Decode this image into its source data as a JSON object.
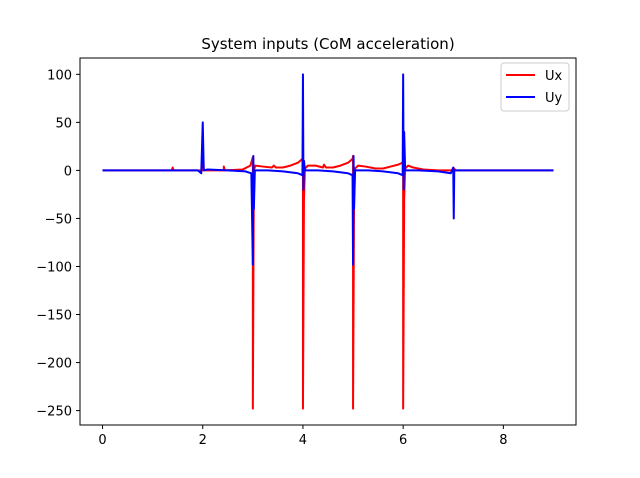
{
  "chart_data": {
    "type": "line",
    "title": "System inputs (CoM acceleration)",
    "xlabel": "",
    "ylabel": "",
    "xlim": [
      -0.45,
      9.45
    ],
    "ylim": [
      -265,
      117
    ],
    "xticks": [
      0,
      2,
      4,
      6,
      8
    ],
    "yticks": [
      100,
      50,
      0,
      -50,
      -100,
      -150,
      -200,
      -250
    ],
    "grid": false,
    "legend_position": "top-right",
    "series": [
      {
        "name": "Ux",
        "color": "#ff0000",
        "points": [
          [
            0,
            0
          ],
          [
            1.38,
            0
          ],
          [
            1.4,
            3
          ],
          [
            1.42,
            0
          ],
          [
            1.9,
            0
          ],
          [
            2.0,
            0
          ],
          [
            2.0,
            20
          ],
          [
            2.02,
            0
          ],
          [
            2.3,
            0
          ],
          [
            2.42,
            0
          ],
          [
            2.42,
            4
          ],
          [
            2.44,
            0
          ],
          [
            2.8,
            1
          ],
          [
            2.95,
            5
          ],
          [
            2.99,
            12
          ],
          [
            3.0,
            14
          ],
          [
            3.0,
            -248
          ],
          [
            3.02,
            0
          ],
          [
            3.05,
            5
          ],
          [
            3.2,
            4
          ],
          [
            3.38,
            3
          ],
          [
            3.42,
            5
          ],
          [
            3.46,
            3
          ],
          [
            3.6,
            3
          ],
          [
            3.75,
            5
          ],
          [
            3.9,
            8
          ],
          [
            3.99,
            12
          ],
          [
            4.0,
            14
          ],
          [
            4.0,
            -248
          ],
          [
            4.02,
            -30
          ],
          [
            4.04,
            2
          ],
          [
            4.1,
            5
          ],
          [
            4.25,
            5
          ],
          [
            4.4,
            3
          ],
          [
            4.42,
            6
          ],
          [
            4.46,
            3
          ],
          [
            4.6,
            3
          ],
          [
            4.75,
            5
          ],
          [
            4.9,
            8
          ],
          [
            4.99,
            12
          ],
          [
            5.0,
            15
          ],
          [
            5.0,
            -248
          ],
          [
            5.02,
            -30
          ],
          [
            5.04,
            2
          ],
          [
            5.1,
            5
          ],
          [
            5.25,
            4
          ],
          [
            5.45,
            2
          ],
          [
            5.6,
            2
          ],
          [
            5.75,
            4
          ],
          [
            5.9,
            6
          ],
          [
            5.99,
            8
          ],
          [
            6.0,
            10
          ],
          [
            6.0,
            -248
          ],
          [
            6.02,
            -30
          ],
          [
            6.04,
            2
          ],
          [
            6.1,
            5
          ],
          [
            6.2,
            3
          ],
          [
            6.4,
            1
          ],
          [
            6.7,
            0
          ],
          [
            7.0,
            0
          ],
          [
            7.02,
            2
          ],
          [
            7.04,
            0
          ],
          [
            9.0,
            0
          ]
        ]
      },
      {
        "name": "Uy",
        "color": "#0000ff",
        "points": [
          [
            0,
            0
          ],
          [
            1.9,
            0
          ],
          [
            1.97,
            -3
          ],
          [
            2.0,
            50
          ],
          [
            2.02,
            0
          ],
          [
            2.1,
            1
          ],
          [
            2.5,
            0
          ],
          [
            2.85,
            -1
          ],
          [
            2.97,
            -3
          ],
          [
            3.0,
            -98
          ],
          [
            3.01,
            15
          ],
          [
            3.02,
            -40
          ],
          [
            3.04,
            0
          ],
          [
            3.3,
            0
          ],
          [
            3.6,
            -1
          ],
          [
            3.9,
            -3
          ],
          [
            3.99,
            -5
          ],
          [
            4.0,
            100
          ],
          [
            4.01,
            -20
          ],
          [
            4.02,
            10
          ],
          [
            4.04,
            0
          ],
          [
            4.3,
            0
          ],
          [
            4.6,
            -1
          ],
          [
            4.9,
            -3
          ],
          [
            4.99,
            -5
          ],
          [
            5.0,
            -98
          ],
          [
            5.01,
            15
          ],
          [
            5.02,
            -40
          ],
          [
            5.04,
            0
          ],
          [
            5.3,
            0
          ],
          [
            5.6,
            -1
          ],
          [
            5.9,
            -3
          ],
          [
            5.99,
            -5
          ],
          [
            6.0,
            100
          ],
          [
            6.01,
            -20
          ],
          [
            6.02,
            40
          ],
          [
            6.04,
            0
          ],
          [
            6.3,
            0
          ],
          [
            6.7,
            -1
          ],
          [
            6.95,
            -3
          ],
          [
            7.0,
            3
          ],
          [
            7.01,
            -50
          ],
          [
            7.02,
            0
          ],
          [
            9.0,
            0
          ]
        ]
      }
    ]
  }
}
